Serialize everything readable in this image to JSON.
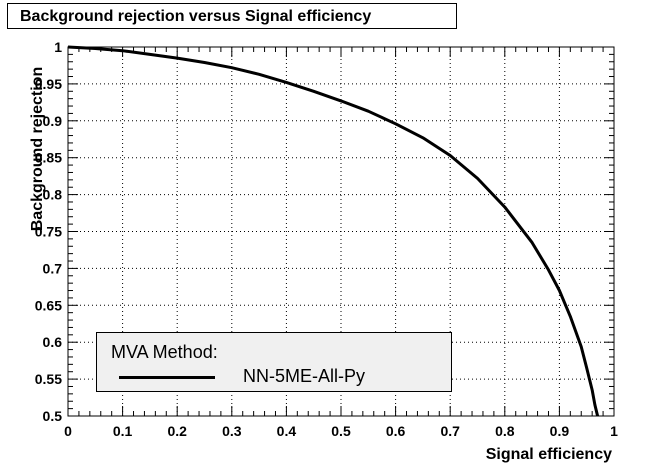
{
  "chart_data": {
    "type": "line",
    "title": "Background rejection versus Signal efficiency",
    "xlabel": "Signal efficiency",
    "ylabel": "Background rejection",
    "xlim": [
      0,
      1
    ],
    "ylim": [
      0.5,
      1
    ],
    "grid": true,
    "legend_position": "bottom-left",
    "legend_header": "MVA Method:",
    "x_ticks": [
      "0",
      "0.1",
      "0.2",
      "0.3",
      "0.4",
      "0.5",
      "0.6",
      "0.7",
      "0.8",
      "0.9",
      "1"
    ],
    "y_ticks": [
      "0.5",
      "0.55",
      "0.6",
      "0.65",
      "0.7",
      "0.75",
      "0.8",
      "0.85",
      "0.9",
      "0.95",
      "1"
    ],
    "series": [
      {
        "name": "NN-5ME-All-Py",
        "color": "#000000",
        "x": [
          0,
          0.05,
          0.1,
          0.15,
          0.2,
          0.25,
          0.3,
          0.35,
          0.4,
          0.45,
          0.5,
          0.55,
          0.6,
          0.65,
          0.7,
          0.75,
          0.8,
          0.85,
          0.88,
          0.9,
          0.92,
          0.94,
          0.95,
          0.96,
          0.965,
          0.97
        ],
        "y": [
          1.0,
          0.998,
          0.995,
          0.99,
          0.985,
          0.979,
          0.972,
          0.963,
          0.952,
          0.94,
          0.927,
          0.913,
          0.896,
          0.877,
          0.853,
          0.822,
          0.783,
          0.735,
          0.698,
          0.67,
          0.635,
          0.594,
          0.565,
          0.535,
          0.515,
          0.5
        ]
      }
    ]
  }
}
